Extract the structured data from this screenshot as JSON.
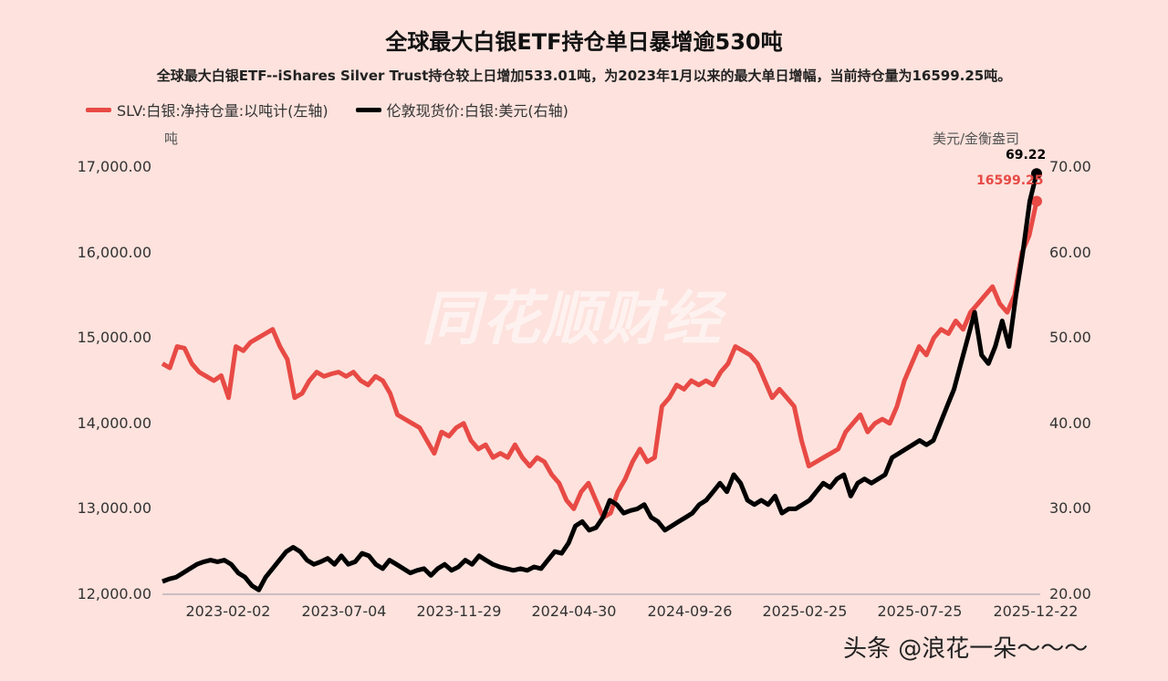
{
  "chart_data": {
    "type": "line",
    "title": "全球最大白银ETF持仓单日暴增逾530吨",
    "subtitle": "全球最大白银ETF--iShares Silver Trust持仓较上日增加533.01吨，为2023年1月以来的最大单日增幅，当前持仓量为16599.25吨。",
    "left_unit": "吨",
    "right_unit": "美元/金衡盎司",
    "left_ticks": [
      "17,000.00",
      "16,000.00",
      "15,000.00",
      "14,000.00",
      "13,000.00",
      "12,000.00"
    ],
    "right_ticks": [
      "70.00",
      "60.00",
      "50.00",
      "40.00",
      "30.00",
      "20.00"
    ],
    "left_ylim": [
      12000,
      17000
    ],
    "right_ylim": [
      20,
      70
    ],
    "x_ticks": [
      "2023-02-02",
      "2023-07-04",
      "2023-11-29",
      "2024-04-30",
      "2024-09-26",
      "2025-02-25",
      "2025-07-25",
      "2025-12-22"
    ],
    "series": [
      {
        "name": "SLV:白银:净持仓量:以吨计(左轴)",
        "axis": "left",
        "color": "#e84a45",
        "end_label": "16599.25",
        "values": [
          14700,
          14650,
          14900,
          14880,
          14700,
          14600,
          14550,
          14500,
          14560,
          14300,
          14900,
          14850,
          14950,
          15000,
          15050,
          15100,
          14900,
          14750,
          14300,
          14350,
          14500,
          14600,
          14550,
          14580,
          14600,
          14550,
          14600,
          14500,
          14450,
          14550,
          14500,
          14350,
          14100,
          14050,
          14000,
          13950,
          13800,
          13650,
          13900,
          13850,
          13950,
          14000,
          13800,
          13700,
          13750,
          13600,
          13650,
          13600,
          13750,
          13600,
          13500,
          13600,
          13550,
          13400,
          13300,
          13100,
          13000,
          13200,
          13300,
          13100,
          12900,
          12950,
          13200,
          13350,
          13550,
          13700,
          13550,
          13600,
          14200,
          14300,
          14450,
          14400,
          14500,
          14450,
          14500,
          14450,
          14600,
          14700,
          14900,
          14850,
          14800,
          14700,
          14500,
          14300,
          14400,
          14300,
          14200,
          13800,
          13500,
          13550,
          13600,
          13650,
          13700,
          13900,
          14000,
          14100,
          13900,
          14000,
          14050,
          14000,
          14200,
          14500,
          14700,
          14900,
          14800,
          15000,
          15100,
          15050,
          15200,
          15100,
          15300,
          15400,
          15500,
          15600,
          15400,
          15300,
          15500,
          16000,
          16200,
          16600
        ]
      },
      {
        "name": "伦敦现货价:白银:美元(右轴)",
        "axis": "right",
        "color": "#000000",
        "end_label": "69.22",
        "values": [
          21.5,
          21.8,
          22.0,
          22.5,
          23.0,
          23.5,
          23.8,
          24.0,
          23.8,
          24.0,
          23.5,
          22.5,
          22.0,
          21.0,
          20.5,
          22.0,
          23.0,
          24.0,
          25.0,
          25.5,
          25.0,
          24.0,
          23.5,
          23.8,
          24.2,
          23.5,
          24.5,
          23.5,
          23.8,
          24.8,
          24.5,
          23.5,
          23.0,
          24.0,
          23.5,
          23.0,
          22.5,
          22.8,
          23.0,
          22.2,
          23.0,
          23.5,
          22.8,
          23.2,
          24.0,
          23.5,
          24.5,
          24.0,
          23.5,
          23.2,
          23.0,
          22.8,
          23.0,
          22.8,
          23.2,
          23.0,
          24.0,
          25.0,
          24.8,
          26.0,
          28.0,
          28.5,
          27.5,
          27.8,
          29.0,
          31.0,
          30.5,
          29.5,
          29.8,
          30.0,
          30.5,
          29.0,
          28.5,
          27.5,
          28.0,
          28.5,
          29.0,
          29.5,
          30.5,
          31.0,
          32.0,
          33.0,
          32.0,
          34.0,
          33.0,
          31.0,
          30.5,
          31.0,
          30.5,
          31.5,
          29.5,
          30.0,
          30.0,
          30.5,
          31.0,
          32.0,
          33.0,
          32.5,
          33.5,
          34.0,
          31.5,
          33.0,
          33.5,
          33.0,
          33.5,
          34.0,
          36.0,
          36.5,
          37.0,
          37.5,
          38.0,
          37.5,
          38.0,
          40.0,
          42.0,
          44.0,
          47.0,
          50.0,
          53.0,
          48.0,
          47.0,
          49.0,
          52.0,
          49.0,
          55.0,
          60.0,
          66.0,
          69.22
        ]
      }
    ]
  },
  "watermark": "同花顺财经",
  "credit": "头条 @浪花一朵～～～"
}
